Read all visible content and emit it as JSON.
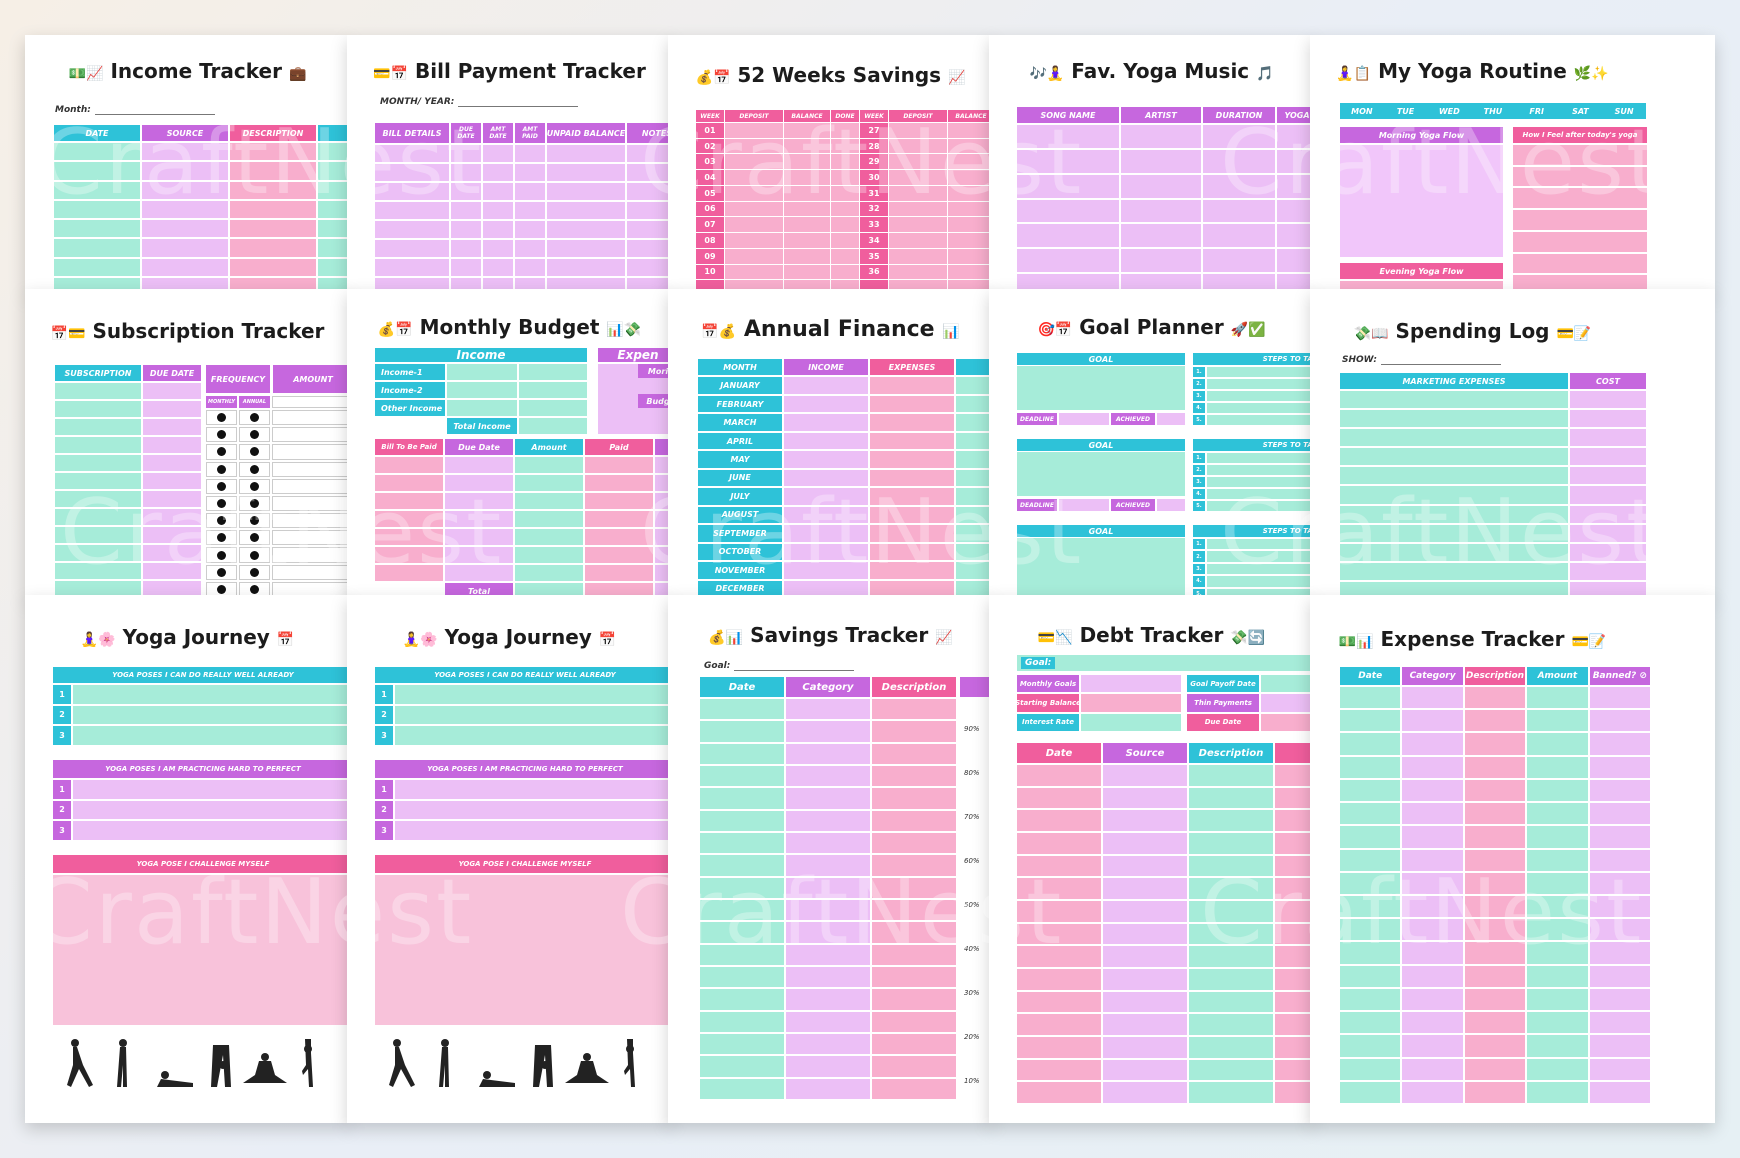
{
  "watermark": "CraftNest",
  "income_tracker": {
    "title": "Income Tracker",
    "icons_l": "💵📈",
    "icons_r": "💼",
    "month_label": "Month:",
    "cols": [
      "DATE",
      "SOURCE",
      "DESCRIPTION"
    ]
  },
  "bill_tracker": {
    "title": "Bill Payment Tracker",
    "icons_l": "💳📅",
    "label": "MONTH/ YEAR:",
    "cols": [
      "BILL DETAILS",
      "DUE DATE",
      "AMT DATE",
      "AMT PAID",
      "UNPAID BALANCE",
      "NOTES"
    ]
  },
  "weeks_savings": {
    "title": "52 Weeks Savings",
    "icons_l": "💰📅",
    "icons_r": "📈",
    "cols": [
      "WEEK",
      "DEPOSIT",
      "BALANCE",
      "DONE",
      "WEEK",
      "DEPOSIT",
      "BALANCE"
    ],
    "weeks_a": [
      "01",
      "02",
      "03",
      "04",
      "05",
      "06",
      "07",
      "08",
      "09",
      "10"
    ],
    "weeks_b": [
      "27",
      "28",
      "29",
      "30",
      "31",
      "32",
      "33",
      "34",
      "35",
      "36"
    ]
  },
  "yoga_music": {
    "title": "Fav. Yoga Music",
    "icons_l": "🎶🧘‍♀️",
    "icons_r": "🎵",
    "cols": [
      "SONG NAME",
      "ARTIST",
      "DURATION",
      "YOGA"
    ]
  },
  "yoga_routine": {
    "title": "My Yoga Routine",
    "icons_l": "🧘‍♀️📋",
    "icons_r": "🌿✨",
    "days": [
      "MON",
      "TUE",
      "WED",
      "THU",
      "FRI",
      "SAT",
      "SUN"
    ],
    "morning": "Morning Yoga Flow",
    "feel": "How I Feel after today's yoga",
    "evening": "Evening Yoga Flow"
  },
  "subscription": {
    "title": "Subscription Tracker",
    "icons_l": "📅💳",
    "cols": [
      "SUBSCRIPTION",
      "DUE DATE",
      "FREQUENCY",
      "AMOUNT"
    ],
    "sub": [
      "MONTHLY",
      "ANNUAL"
    ]
  },
  "monthly_budget": {
    "title": "Monthly Budget",
    "icons_l": "💰📅",
    "icons_r": "📊💸",
    "income": "Income",
    "rows": [
      "Income-1",
      "Income-2",
      "Other Income"
    ],
    "total_income": "Total Income",
    "expense": "Expen",
    "more": "Mori",
    "budg": "Budg",
    "bill_cols": [
      "Bill To Be Paid",
      "Due Date",
      "Amount",
      "Paid"
    ],
    "total": "Total"
  },
  "annual_finance": {
    "title": "Annual Finance",
    "icons_l": "📅💰",
    "icons_r": "📊",
    "cols": [
      "MONTH",
      "INCOME",
      "EXPENSES"
    ],
    "months": [
      "JANUARY",
      "FEBRUARY",
      "MARCH",
      "APRIL",
      "MAY",
      "JUNE",
      "JULY",
      "AUGUST",
      "SEPTEMBER",
      "OCTOBER",
      "NOVEMBER",
      "DECEMBER"
    ]
  },
  "goal_planner": {
    "title": "Goal Planner",
    "icons_l": "🎯📅",
    "icons_r": "🚀✅",
    "goal": "GOAL",
    "steps": "STEPS TO TAKE",
    "deadline": "DEADLINE",
    "achieved": "ACHIEVED",
    "nums": [
      "1.",
      "2.",
      "3.",
      "4.",
      "5."
    ]
  },
  "spending_log": {
    "title": "Spending Log",
    "icons_l": "💸📖",
    "icons_r": "💳📝",
    "show": "SHOW:",
    "cols": [
      "MARKETING EXPENSES",
      "COST"
    ]
  },
  "yoga_journey": {
    "title": "Yoga Journey",
    "icons_l": "🧘‍♀️🌸",
    "icons_r": "📅",
    "well": "YOGA POSES I CAN DO REALLY WELL ALREADY",
    "practice": "YOGA POSES I AM PRACTICING HARD TO PERFECT",
    "challenge": "YOGA POSE I CHALLENGE MYSELF",
    "nums": [
      "1",
      "2",
      "3"
    ]
  },
  "savings_tracker": {
    "title": "Savings Tracker",
    "icons_l": "💰📊",
    "icons_r": "📈",
    "goal": "Goal:",
    "cols": [
      "Date",
      "Category",
      "Description"
    ],
    "pcts": [
      "90%",
      "80%",
      "70%",
      "60%",
      "50%",
      "40%",
      "30%",
      "20%",
      "10%"
    ]
  },
  "debt_tracker": {
    "title": "Debt Tracker",
    "icons_l": "💳📉",
    "icons_r": "💸🔄",
    "goal": "Goal:",
    "left": [
      "Monthly Goals",
      "Starting Balance",
      "Interest Rate"
    ],
    "right": [
      "Goal Payoff Date",
      "Thin Payments",
      "Due Date"
    ],
    "cols": [
      "Date",
      "Source",
      "Description"
    ]
  },
  "expense_tracker": {
    "title": "Expense Tracker",
    "icons_l": "💵📊",
    "icons_r": "💳📝",
    "cols": [
      "Date",
      "Category",
      "Description",
      "Amount",
      "Banned?"
    ]
  }
}
